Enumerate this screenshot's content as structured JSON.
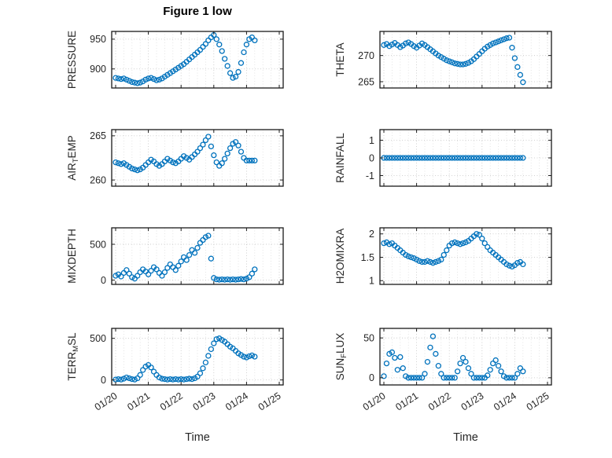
{
  "colors": {
    "marker": "#0072BD",
    "axis": "#1a1a1a",
    "tick_label": "#262626",
    "grid_major": "#c4c4c4",
    "grid_minor": "#dedede"
  },
  "chart_data": {
    "type": "scatter",
    "title": "Figure 1 low",
    "xlabel": "Time",
    "xlim": [
      -0.12,
      5.12
    ],
    "x_tick_positions": [
      0,
      1,
      2,
      3,
      4,
      5
    ],
    "x_tick_labels": [
      "01/20",
      "01/21",
      "01/22",
      "01/23",
      "01/24",
      "01/25"
    ],
    "x_days": [
      0,
      0.083,
      0.167,
      0.25,
      0.333,
      0.417,
      0.5,
      0.583,
      0.667,
      0.75,
      0.833,
      0.917,
      1,
      1.083,
      1.167,
      1.25,
      1.333,
      1.417,
      1.5,
      1.583,
      1.667,
      1.75,
      1.833,
      1.917,
      2,
      2.083,
      2.167,
      2.25,
      2.333,
      2.417,
      2.5,
      2.583,
      2.667,
      2.75,
      2.833,
      2.917,
      3,
      3.083,
      3.167,
      3.25,
      3.333,
      3.417,
      3.5,
      3.583,
      3.667,
      3.75,
      3.833,
      3.917,
      4,
      4.083,
      4.167,
      4.25
    ],
    "subplots": [
      {
        "name": "PRESSURE",
        "row": 0,
        "col": 0,
        "ylabel_parts": {
          "pre": "PRESSURE",
          "sub": "",
          "post": ""
        },
        "ylim": [
          868,
          963
        ],
        "yticks": [
          900,
          950
        ],
        "ytick_labels": [
          "900",
          "950"
        ],
        "values": [
          885,
          884,
          883,
          884,
          882,
          880,
          878,
          877,
          876,
          877,
          879,
          882,
          884,
          885,
          883,
          881,
          882,
          884,
          887,
          890,
          893,
          896,
          899,
          902,
          905,
          908,
          912,
          916,
          920,
          924,
          928,
          932,
          937,
          942,
          948,
          953,
          957,
          950,
          941,
          930,
          917,
          905,
          893,
          885,
          887,
          895,
          910,
          928,
          941,
          950,
          953,
          948
        ]
      },
      {
        "name": "THETA",
        "row": 0,
        "col": 1,
        "ylabel_parts": {
          "pre": "THETA",
          "sub": "",
          "post": ""
        },
        "ylim": [
          263.8,
          274.6
        ],
        "yticks": [
          265,
          270
        ],
        "ytick_labels": [
          "265",
          "270"
        ],
        "values": [
          272,
          272.2,
          271.8,
          272.1,
          272.4,
          272,
          271.6,
          271.9,
          272.3,
          272.5,
          272.2,
          271.8,
          271.5,
          271.9,
          272.3,
          272,
          271.6,
          271.2,
          270.8,
          270.4,
          270,
          269.7,
          269.4,
          269.1,
          268.9,
          268.7,
          268.5,
          268.4,
          268.3,
          268.3,
          268.4,
          268.6,
          268.9,
          269.3,
          269.8,
          270.3,
          270.8,
          271.3,
          271.7,
          272,
          272.3,
          272.5,
          272.7,
          272.9,
          273.1,
          273.3,
          273.4,
          271.5,
          269.5,
          267.8,
          266.3,
          264.9
        ]
      },
      {
        "name": "AIR_TEMP",
        "row": 1,
        "col": 0,
        "ylabel_parts": {
          "pre": "AIR",
          "sub": "T",
          "post": "EMP"
        },
        "ylim": [
          259.3,
          265.7
        ],
        "yticks": [
          260,
          265
        ],
        "ytick_labels": [
          "260",
          "265"
        ],
        "values": [
          262,
          261.9,
          261.8,
          261.9,
          261.7,
          261.5,
          261.3,
          261.2,
          261.1,
          261.2,
          261.4,
          261.7,
          262,
          262.3,
          262.1,
          261.8,
          261.6,
          261.8,
          262.1,
          262.4,
          262.2,
          262,
          261.9,
          262.1,
          262.4,
          262.7,
          262.5,
          262.3,
          262.6,
          262.9,
          263.2,
          263.6,
          264,
          264.5,
          264.9,
          263.8,
          262.8,
          262,
          261.6,
          261.9,
          262.4,
          263,
          263.6,
          264.1,
          264.3,
          263.9,
          263.2,
          262.5,
          262.2,
          262.2,
          262.2,
          262.2
        ]
      },
      {
        "name": "RAINFALL",
        "row": 1,
        "col": 1,
        "ylabel_parts": {
          "pre": "RAINFALL",
          "sub": "",
          "post": ""
        },
        "ylim": [
          -1.6,
          1.6
        ],
        "yticks": [
          -1,
          0,
          1
        ],
        "ytick_labels": [
          "-1",
          "0",
          "1"
        ],
        "values": [
          0,
          0,
          0,
          0,
          0,
          0,
          0,
          0,
          0,
          0,
          0,
          0,
          0,
          0,
          0,
          0,
          0,
          0,
          0,
          0,
          0,
          0,
          0,
          0,
          0,
          0,
          0,
          0,
          0,
          0,
          0,
          0,
          0,
          0,
          0,
          0,
          0,
          0,
          0,
          0,
          0,
          0,
          0,
          0,
          0,
          0,
          0,
          0,
          0,
          0,
          0,
          0
        ]
      },
      {
        "name": "MIXDEPTH",
        "row": 2,
        "col": 0,
        "ylabel_parts": {
          "pre": "MIXDEPTH",
          "sub": "",
          "post": ""
        },
        "ylim": [
          -60,
          730
        ],
        "yticks": [
          0,
          500
        ],
        "ytick_labels": [
          "0",
          "500"
        ],
        "values": [
          60,
          80,
          50,
          100,
          140,
          90,
          40,
          20,
          60,
          110,
          150,
          120,
          80,
          130,
          180,
          150,
          100,
          60,
          110,
          170,
          220,
          180,
          140,
          200,
          260,
          320,
          280,
          350,
          420,
          380,
          450,
          520,
          560,
          600,
          620,
          300,
          30,
          10,
          5,
          10,
          5,
          10,
          5,
          10,
          5,
          10,
          15,
          10,
          20,
          40,
          90,
          150
        ]
      },
      {
        "name": "H2OMIXRA",
        "row": 2,
        "col": 1,
        "ylabel_parts": {
          "pre": "H2OMIXRA",
          "sub": "",
          "post": ""
        },
        "ylim": [
          0.92,
          2.13
        ],
        "yticks": [
          1,
          1.5,
          2
        ],
        "ytick_labels": [
          "1",
          "1.5",
          "2"
        ],
        "values": [
          1.8,
          1.82,
          1.78,
          1.8,
          1.75,
          1.7,
          1.65,
          1.6,
          1.55,
          1.52,
          1.5,
          1.48,
          1.45,
          1.42,
          1.4,
          1.4,
          1.42,
          1.4,
          1.38,
          1.4,
          1.42,
          1.45,
          1.55,
          1.65,
          1.75,
          1.8,
          1.82,
          1.8,
          1.78,
          1.8,
          1.82,
          1.85,
          1.9,
          1.95,
          2,
          1.98,
          1.9,
          1.8,
          1.72,
          1.65,
          1.6,
          1.55,
          1.5,
          1.45,
          1.4,
          1.35,
          1.32,
          1.3,
          1.33,
          1.38,
          1.4,
          1.35
        ]
      },
      {
        "name": "TERR_MSL",
        "row": 3,
        "col": 0,
        "ylabel_parts": {
          "pre": "TERR",
          "sub": "M",
          "post": "SL"
        },
        "ylim": [
          -60,
          620
        ],
        "yticks": [
          0,
          500
        ],
        "ytick_labels": [
          "0",
          "500"
        ],
        "values": [
          5,
          10,
          5,
          15,
          30,
          20,
          10,
          5,
          20,
          60,
          120,
          160,
          180,
          150,
          100,
          60,
          30,
          15,
          10,
          5,
          10,
          5,
          10,
          5,
          10,
          5,
          10,
          15,
          10,
          20,
          40,
          80,
          140,
          210,
          290,
          370,
          440,
          490,
          500,
          480,
          460,
          430,
          400,
          380,
          350,
          320,
          300,
          280,
          270,
          285,
          295,
          280
        ]
      },
      {
        "name": "SUN_FLUX",
        "row": 3,
        "col": 1,
        "ylabel_parts": {
          "pre": "SUN",
          "sub": "F",
          "post": "LUX"
        },
        "ylim": [
          -9,
          62
        ],
        "yticks": [
          0,
          50
        ],
        "ytick_labels": [
          "0",
          "50"
        ],
        "values": [
          2,
          18,
          30,
          32,
          25,
          10,
          26,
          12,
          2,
          0,
          0,
          0,
          0,
          0,
          0,
          5,
          20,
          38,
          52,
          30,
          15,
          5,
          0,
          0,
          0,
          0,
          0,
          8,
          18,
          25,
          20,
          12,
          5,
          0,
          0,
          0,
          0,
          0,
          3,
          10,
          18,
          22,
          15,
          8,
          2,
          0,
          0,
          0,
          0,
          5,
          12,
          8
        ]
      }
    ]
  }
}
